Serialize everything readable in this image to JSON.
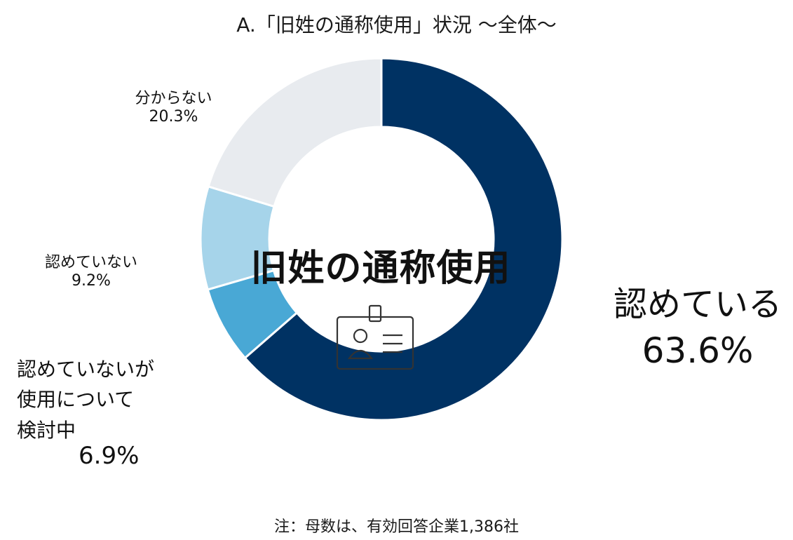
{
  "title": "A.「旧姓の通称使用」状況 ～全体～",
  "center_label": "旧姓の通称使用",
  "center_icon": "id-badge-icon",
  "footnote": "注：母数は、有効回答企業1,386社",
  "colors": {
    "recognized": "#003263",
    "considering": "#49a8d5",
    "not_recognized": "#a6d4ea",
    "unknown": "#e8ebef"
  },
  "labels": {
    "recognized": {
      "name": "認めている",
      "pct": "63.6%"
    },
    "considering": {
      "name_lines": [
        "認めていないが",
        "使用について",
        "検討中"
      ],
      "pct": "6.9%"
    },
    "not_recognized": {
      "name": "認めていない",
      "pct": "9.2%"
    },
    "unknown": {
      "name": "分からない",
      "pct": "20.3%"
    }
  },
  "chart_data": {
    "type": "pie",
    "style": "donut",
    "title": "A.「旧姓の通称使用」状況 ～全体～",
    "categories": [
      "認めている",
      "認めていないが使用について検討中",
      "認めていない",
      "分からない"
    ],
    "values": [
      63.6,
      6.9,
      9.2,
      20.3
    ],
    "unit": "%",
    "start": "12 o'clock",
    "direction": "clockwise"
  }
}
